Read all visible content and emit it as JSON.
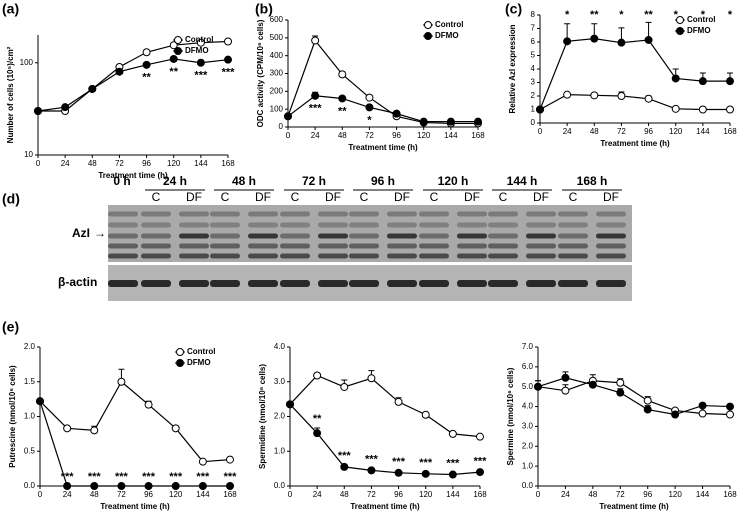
{
  "panel_labels": [
    "(a)",
    "(b)",
    "(c)",
    "(d)",
    "(e)"
  ],
  "blot": {
    "time_labels": [
      "0 h",
      "24 h",
      "48 h",
      "72 h",
      "96 h",
      "120 h",
      "144 h",
      "168 h"
    ],
    "lane_labels": [
      "C",
      "DF"
    ],
    "bands": [
      "AzI",
      "β-actin"
    ]
  },
  "chart_data": [
    {
      "type": "line",
      "y_label": "Number of cells (10⁵)/cm²",
      "x_label": "Treatment time (h)",
      "log_y": true,
      "legend": true,
      "x": [
        0,
        24,
        48,
        72,
        96,
        120,
        144,
        168
      ],
      "xlim": [
        0,
        168
      ],
      "xticks": [
        0,
        24,
        48,
        72,
        96,
        120,
        144,
        168
      ],
      "ylim": [
        10,
        200
      ],
      "yticks": [
        10,
        100
      ],
      "series": [
        {
          "name": "Control",
          "color": "#ffffff",
          "values": [
            30,
            30,
            52,
            90,
            130,
            155,
            165,
            170
          ]
        },
        {
          "name": "DFMO",
          "color": "#000000",
          "values": [
            30,
            33,
            52,
            80,
            95,
            110,
            100,
            108
          ]
        }
      ],
      "annotations": [
        {
          "x": 96,
          "text": "**"
        },
        {
          "x": 120,
          "text": "**"
        },
        {
          "x": 144,
          "text": "***"
        },
        {
          "x": 168,
          "text": "***"
        }
      ]
    },
    {
      "type": "line",
      "y_label": "ODC activity (CPM/10⁶ cells)",
      "x_label": "Treatment time (h)",
      "legend": true,
      "x": [
        0,
        24,
        48,
        72,
        96,
        120,
        144,
        168
      ],
      "xlim": [
        0,
        168
      ],
      "xticks": [
        0,
        24,
        48,
        72,
        96,
        120,
        144,
        168
      ],
      "ylim": [
        0,
        600
      ],
      "yticks": [
        0,
        100,
        200,
        300,
        400,
        500,
        600
      ],
      "series": [
        {
          "name": "Control",
          "color": "#ffffff",
          "values": [
            60,
            485,
            295,
            165,
            60,
            25,
            20,
            20
          ],
          "errors": [
            0,
            25,
            15,
            10,
            10,
            3,
            3,
            3
          ]
        },
        {
          "name": "DFMO",
          "color": "#000000",
          "values": [
            60,
            175,
            160,
            110,
            75,
            30,
            30,
            30
          ],
          "errors": [
            5,
            20,
            10,
            8,
            8,
            3,
            3,
            3
          ]
        }
      ],
      "annotations": [
        {
          "x": 24,
          "text": "***"
        },
        {
          "x": 48,
          "text": "**"
        },
        {
          "x": 72,
          "text": "*"
        }
      ]
    },
    {
      "type": "line",
      "y_label": "Relative AzI expression",
      "x_label": "Treatment time (h)",
      "legend": true,
      "x": [
        0,
        24,
        48,
        72,
        96,
        120,
        144,
        168
      ],
      "xlim": [
        0,
        168
      ],
      "xticks": [
        0,
        24,
        48,
        72,
        96,
        120,
        144,
        168
      ],
      "ylim": [
        0,
        8
      ],
      "yticks": [
        0,
        1,
        2,
        3,
        4,
        5,
        6,
        7,
        8
      ],
      "series": [
        {
          "name": "Control",
          "color": "#ffffff",
          "values": [
            1,
            2.1,
            2.05,
            2.0,
            1.8,
            1.05,
            1.0,
            1.0
          ],
          "errors": [
            0,
            0.1,
            0.1,
            0.3,
            0.2,
            0.1,
            0.1,
            0.1
          ]
        },
        {
          "name": "DFMO",
          "color": "#000000",
          "values": [
            1,
            6.05,
            6.25,
            5.95,
            6.15,
            3.3,
            3.1,
            3.1
          ],
          "errors": [
            0,
            1.3,
            1.1,
            1.1,
            1.3,
            0.7,
            0.6,
            0.6
          ]
        }
      ],
      "annotations": [
        {
          "x": 24,
          "text": "*"
        },
        {
          "x": 48,
          "text": "**"
        },
        {
          "x": 72,
          "text": "*"
        },
        {
          "x": 96,
          "text": "**"
        },
        {
          "x": 120,
          "text": "*"
        },
        {
          "x": 144,
          "text": "*"
        },
        {
          "x": 168,
          "text": "*"
        }
      ]
    },
    {
      "type": "line",
      "y_label": "Putrescine (nmol/10⁶ cells)",
      "x_label": "Treatment time (h)",
      "legend": true,
      "x": [
        0,
        24,
        48,
        72,
        96,
        120,
        144,
        168
      ],
      "xlim": [
        0,
        168
      ],
      "xticks": [
        0,
        24,
        48,
        72,
        96,
        120,
        144,
        168
      ],
      "ylim": [
        0,
        2
      ],
      "yticks": [
        {
          "value": 0,
          "label": "0.0"
        },
        0.5,
        {
          "value": 1,
          "label": "1.0"
        },
        1.5,
        {
          "value": 2,
          "label": "2.0"
        }
      ],
      "series": [
        {
          "name": "Control",
          "color": "#ffffff",
          "values": [
            1.22,
            0.83,
            0.8,
            1.5,
            1.17,
            0.83,
            0.35,
            0.38
          ],
          "errors": [
            0,
            0.02,
            0.06,
            0.18,
            0.05,
            0.03,
            0.02,
            0.02
          ]
        },
        {
          "name": "DFMO",
          "color": "#000000",
          "values": [
            1.22,
            0,
            0,
            0,
            0,
            0,
            0,
            0
          ]
        }
      ],
      "annotations": [
        {
          "x": 24,
          "text": "***"
        },
        {
          "x": 48,
          "text": "***"
        },
        {
          "x": 72,
          "text": "***"
        },
        {
          "x": 96,
          "text": "***"
        },
        {
          "x": 120,
          "text": "***"
        },
        {
          "x": 144,
          "text": "***"
        },
        {
          "x": 168,
          "text": "***"
        }
      ]
    },
    {
      "type": "line",
      "y_label": "Spermidine (nmol/10⁶ cells)",
      "x_label": "Treatment time (h)",
      "legend": false,
      "x": [
        0,
        24,
        48,
        72,
        96,
        120,
        144,
        168
      ],
      "xlim": [
        0,
        168
      ],
      "xticks": [
        0,
        24,
        48,
        72,
        96,
        120,
        144,
        168
      ],
      "ylim": [
        0,
        4
      ],
      "yticks": [
        {
          "value": 0,
          "label": "0.0"
        },
        {
          "value": 1,
          "label": "1.0"
        },
        {
          "value": 2,
          "label": "2.0"
        },
        {
          "value": 3,
          "label": "3.0"
        },
        {
          "value": 4,
          "label": "4.0"
        }
      ],
      "series": [
        {
          "name": "Control",
          "color": "#ffffff",
          "values": [
            2.35,
            3.18,
            2.85,
            3.1,
            2.42,
            2.05,
            1.5,
            1.42
          ],
          "errors": [
            0,
            0.05,
            0.2,
            0.22,
            0.12,
            0.05,
            0.05,
            0.05
          ]
        },
        {
          "name": "DFMO",
          "color": "#000000",
          "values": [
            2.35,
            1.52,
            0.55,
            0.45,
            0.38,
            0.35,
            0.33,
            0.4
          ],
          "errors": [
            0,
            0.15,
            0.05,
            0.05,
            0.05,
            0.05,
            0.05,
            0.05
          ]
        }
      ],
      "annotations": [
        {
          "x": 24,
          "text": "**"
        },
        {
          "x": 48,
          "text": "***"
        },
        {
          "x": 72,
          "text": "***"
        },
        {
          "x": 96,
          "text": "***"
        },
        {
          "x": 120,
          "text": "***"
        },
        {
          "x": 144,
          "text": "***"
        },
        {
          "x": 168,
          "text": "***"
        }
      ]
    },
    {
      "type": "line",
      "y_label": "Spermine (nmol/10⁶ cells)",
      "x_label": "Treatment time (h)",
      "legend": false,
      "x": [
        0,
        24,
        48,
        72,
        96,
        120,
        144,
        168
      ],
      "xlim": [
        0,
        168
      ],
      "xticks": [
        0,
        24,
        48,
        72,
        96,
        120,
        144,
        168
      ],
      "ylim": [
        0,
        7
      ],
      "yticks": [
        {
          "value": 0,
          "label": "0.0"
        },
        {
          "value": 1,
          "label": "1.0"
        },
        {
          "value": 2,
          "label": "2.0"
        },
        {
          "value": 3,
          "label": "3.0"
        },
        {
          "value": 4,
          "label": "4.0"
        },
        {
          "value": 5,
          "label": "5.0"
        },
        {
          "value": 6,
          "label": "6.0"
        },
        {
          "value": 7,
          "label": "7.0"
        }
      ],
      "series": [
        {
          "name": "Control",
          "color": "#ffffff",
          "values": [
            5.0,
            4.8,
            5.3,
            5.2,
            4.3,
            3.8,
            3.65,
            3.6
          ],
          "errors": [
            0.3,
            0.3,
            0.3,
            0.2,
            0.2,
            0.1,
            0.1,
            0.1
          ]
        },
        {
          "name": "DFMO",
          "color": "#000000",
          "values": [
            5.0,
            5.45,
            5.1,
            4.7,
            3.85,
            3.6,
            4.05,
            4.0
          ],
          "errors": [
            0.3,
            0.3,
            0.3,
            0.2,
            0.2,
            0.1,
            0.1,
            0.1
          ]
        }
      ]
    }
  ]
}
